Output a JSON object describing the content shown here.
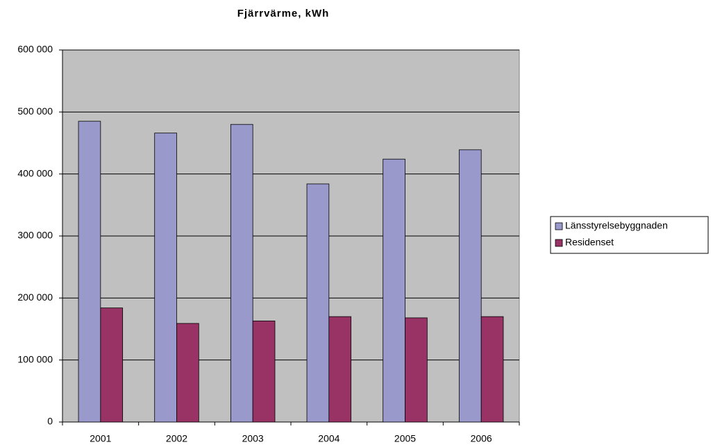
{
  "chart_data": {
    "type": "bar",
    "title": "Fjärrvärme, kWh",
    "categories": [
      "2001",
      "2002",
      "2003",
      "2004",
      "2005",
      "2006"
    ],
    "series": [
      {
        "name": "Länsstyrelsebyggnaden",
        "color": "#9999cc",
        "values": [
          485000,
          466000,
          480000,
          384000,
          424000,
          439000
        ]
      },
      {
        "name": "Residenset",
        "color": "#993366",
        "values": [
          184000,
          159000,
          163000,
          170000,
          168000,
          170000
        ]
      }
    ],
    "ylim": [
      0,
      600000
    ],
    "yticks": [
      0,
      {
        "value": 100000,
        "label": "100 000"
      },
      {
        "value": 200000,
        "label": "200 000"
      },
      {
        "value": 300000,
        "label": "300 000"
      },
      {
        "value": 400000,
        "label": "400 000"
      },
      {
        "value": 500000,
        "label": "500 000"
      },
      {
        "value": 600000,
        "label": "600 000"
      }
    ],
    "grid": true,
    "legend": "right"
  }
}
